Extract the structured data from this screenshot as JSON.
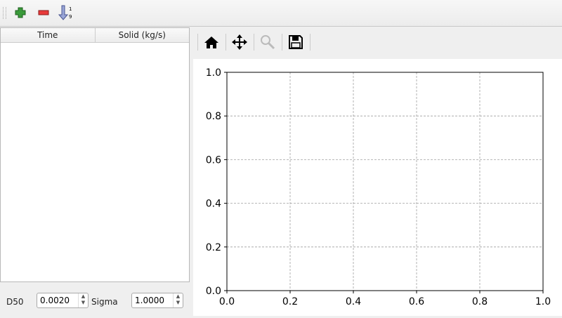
{
  "toolbar": {
    "items": [
      {
        "icon": "add-icon"
      },
      {
        "icon": "remove-icon"
      },
      {
        "icon": "sort-ascending-icon"
      }
    ]
  },
  "table": {
    "columns": [
      "Time",
      "Solid (kg/s)"
    ],
    "rows": []
  },
  "params": {
    "d50_label": "D50",
    "d50_value": "0.0020",
    "sigma_label": "Sigma",
    "sigma_value": "1.0000"
  },
  "plot_toolbar": {
    "items": [
      {
        "icon": "home-icon"
      },
      {
        "icon": "pan-icon"
      },
      {
        "icon": "zoom-icon"
      },
      {
        "icon": "save-icon"
      }
    ]
  },
  "chart_data": {
    "type": "line",
    "series": [],
    "xlim": [
      0,
      1
    ],
    "ylim": [
      0,
      1
    ],
    "xticks": [
      "0.0",
      "0.2",
      "0.4",
      "0.6",
      "0.8",
      "1.0"
    ],
    "yticks": [
      "0.0",
      "0.2",
      "0.4",
      "0.6",
      "0.8",
      "1.0"
    ],
    "grid": true,
    "grid_style": "dashed",
    "grid_color": "#a0a0a0"
  }
}
